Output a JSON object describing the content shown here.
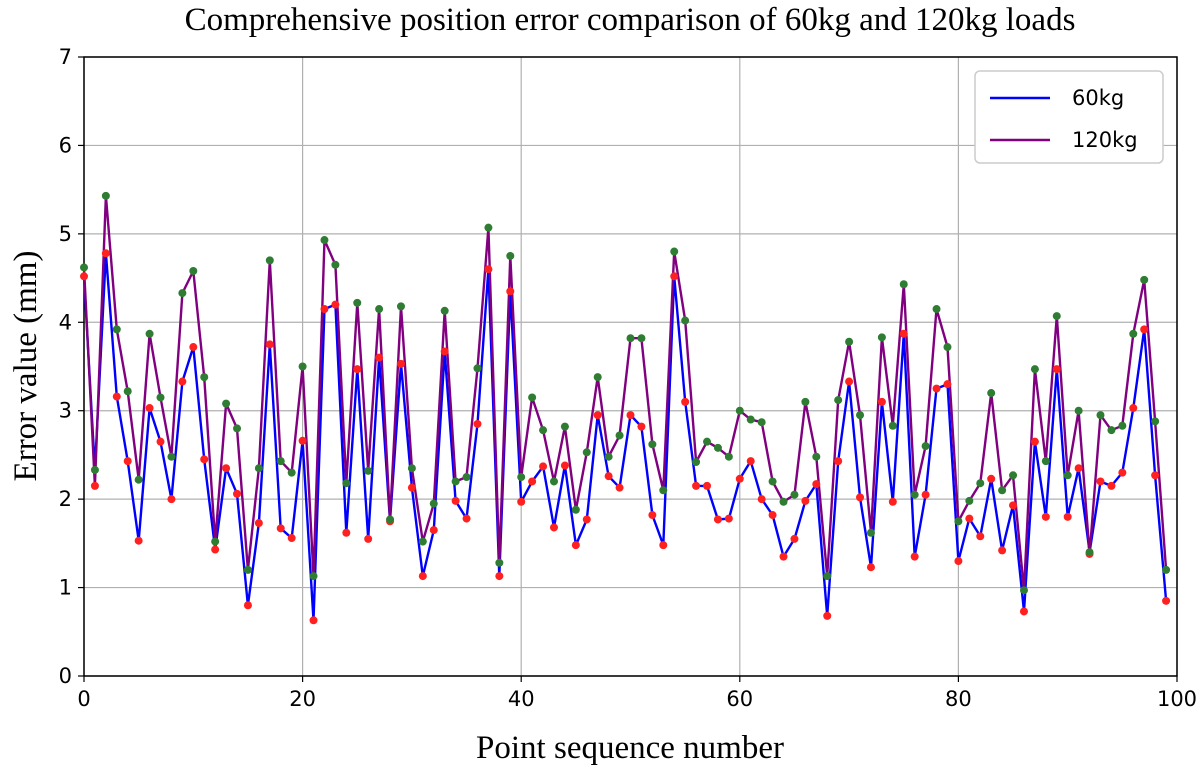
{
  "chart_data": {
    "type": "line",
    "title": "Comprehensive position error comparison of 60kg and 120kg loads",
    "xlabel": "Point sequence number",
    "ylabel": "Error value (mm)",
    "xlim": [
      0,
      100
    ],
    "ylim": [
      0,
      7
    ],
    "xticks": [
      "0",
      "20",
      "40",
      "60",
      "80",
      "100"
    ],
    "yticks": [
      "0",
      "1",
      "2",
      "3",
      "4",
      "5",
      "6",
      "7"
    ],
    "grid": true,
    "legend_position": "top-right",
    "marker_colors": {
      "60kg": "#ff2020",
      "120kg": "#2e7d32"
    },
    "series": [
      {
        "name": "60kg",
        "color": "#0000ff",
        "values": [
          4.52,
          2.33,
          4.78,
          3.16,
          2.43,
          1.53,
          3.03,
          2.65,
          2.0,
          3.33,
          3.72,
          2.45,
          1.43,
          2.35,
          2.06,
          0.8,
          1.73,
          3.75,
          1.67,
          1.56,
          2.66,
          0.63,
          4.15,
          4.2,
          1.62,
          3.47,
          1.55,
          3.6,
          1.75,
          3.53,
          2.13,
          1.13,
          1.65,
          3.67,
          1.98,
          1.78,
          2.85,
          4.6,
          1.13,
          4.35,
          1.97,
          2.2,
          2.37,
          1.68,
          2.38,
          1.48,
          1.77,
          2.95,
          2.26,
          2.13,
          2.95,
          2.82,
          1.82,
          1.48,
          4.52,
          3.1,
          2.15,
          2.15,
          1.77,
          1.78,
          2.23,
          2.43,
          2.0,
          1.82,
          1.35,
          1.55,
          1.98,
          2.17,
          0.68,
          2.43,
          3.33,
          2.02,
          1.23,
          3.1,
          1.97,
          3.87,
          1.35,
          2.05,
          3.25,
          3.3,
          1.3,
          1.78,
          1.58,
          2.23,
          1.42,
          1.93,
          0.73,
          2.65,
          1.8,
          3.47,
          1.8,
          2.35,
          1.4,
          2.2,
          2.15,
          2.3,
          3.03,
          3.92,
          2.27,
          0.85
        ]
      },
      {
        "name": "120kg",
        "color": "#800080",
        "values": [
          4.62,
          2.15,
          5.43,
          3.92,
          3.22,
          2.22,
          3.87,
          3.15,
          2.48,
          4.33,
          4.58,
          3.38,
          1.52,
          3.08,
          2.8,
          1.2,
          2.35,
          4.7,
          2.43,
          2.3,
          3.5,
          1.13,
          4.93,
          4.65,
          2.18,
          4.22,
          2.32,
          4.15,
          1.77,
          4.18,
          2.35,
          1.52,
          1.95,
          4.13,
          2.2,
          2.25,
          3.48,
          5.07,
          1.28,
          4.75,
          2.25,
          3.15,
          2.78,
          2.2,
          2.82,
          1.88,
          2.53,
          3.38,
          2.48,
          2.72,
          3.82,
          3.82,
          2.62,
          2.1,
          4.8,
          4.02,
          2.42,
          2.65,
          2.58,
          2.48,
          3.0,
          2.9,
          2.87,
          2.2,
          1.97,
          2.05,
          3.1,
          2.48,
          1.13,
          3.12,
          3.78,
          2.95,
          1.62,
          3.83,
          2.83,
          4.43,
          2.05,
          2.6,
          4.15,
          3.72,
          1.75,
          1.98,
          2.18,
          3.2,
          2.1,
          2.27,
          0.97,
          3.47,
          2.43,
          4.07,
          2.27,
          3.0,
          1.38,
          2.95,
          2.78,
          2.83,
          3.87,
          4.48,
          2.88,
          1.2
        ]
      }
    ]
  }
}
